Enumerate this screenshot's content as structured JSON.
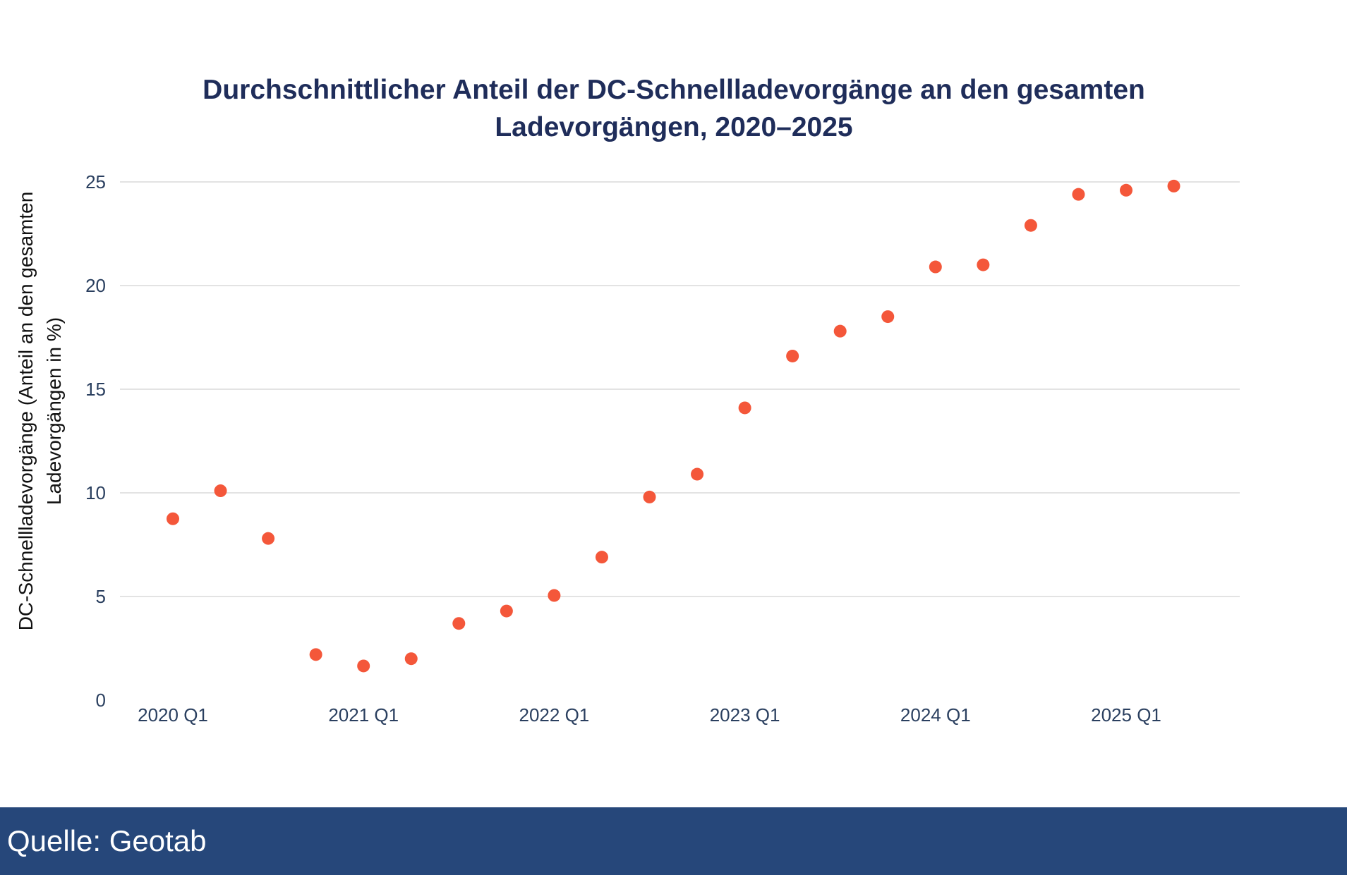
{
  "chart_data": {
    "type": "scatter",
    "title": "Durchschnittlicher Anteil der DC-Schnellladevorgänge an den gesamten Ladevorgängen, 2020–2025",
    "title_lines": [
      "Durchschnittlicher Anteil der DC-Schnellladevorgänge an den gesamten",
      "Ladevorgängen, 2020–2025"
    ],
    "xlabel": "",
    "ylabel": "DC-Schnellladevorgänge (Anteil an den gesamten Ladevorgängen in %)",
    "ylabel_lines": [
      "DC-Schnellladevorgänge (Anteil an den gesamten",
      "Ladevorgängen in %)"
    ],
    "x_ticks": [
      "2020 Q1",
      "2021 Q1",
      "2022 Q1",
      "2023 Q1",
      "2024 Q1",
      "2025 Q1"
    ],
    "y_ticks": [
      "0",
      "5",
      "10",
      "15",
      "20",
      "25"
    ],
    "ylim": [
      0,
      25
    ],
    "grid": true,
    "marker_color": "#f4573a",
    "x": [
      "2020 Q1",
      "2020 Q2",
      "2020 Q3",
      "2020 Q4",
      "2021 Q1",
      "2021 Q2",
      "2021 Q3",
      "2021 Q4",
      "2022 Q1",
      "2022 Q2",
      "2022 Q3",
      "2022 Q4",
      "2023 Q1",
      "2023 Q2",
      "2023 Q3",
      "2023 Q4",
      "2024 Q1",
      "2024 Q2",
      "2024 Q3",
      "2024 Q4",
      "2025 Q1",
      "2025 Q2"
    ],
    "values": [
      8.75,
      10.1,
      7.8,
      2.2,
      1.65,
      2.0,
      3.7,
      4.3,
      5.05,
      6.9,
      9.8,
      10.9,
      14.1,
      16.6,
      17.8,
      18.5,
      20.9,
      21.0,
      22.9,
      24.4,
      24.6,
      24.8
    ]
  },
  "footer": {
    "source": "Quelle: Geotab",
    "color": "#26477a"
  }
}
